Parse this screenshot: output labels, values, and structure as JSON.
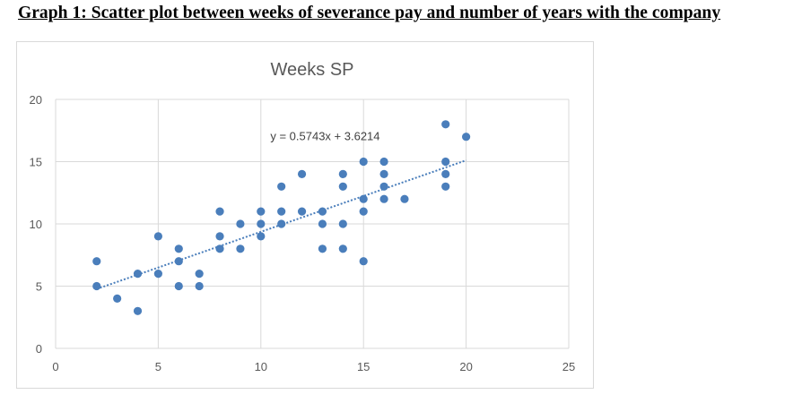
{
  "document": {
    "heading": "Graph 1: Scatter plot between weeks of severance pay and number of years with the company"
  },
  "chart_data": {
    "type": "scatter",
    "title": "Weeks SP",
    "xlabel": "",
    "ylabel": "",
    "xlim": [
      0,
      25
    ],
    "ylim": [
      0,
      20
    ],
    "x_ticks": [
      0,
      5,
      10,
      15,
      20,
      25
    ],
    "y_ticks": [
      0,
      5,
      10,
      15,
      20
    ],
    "grid": true,
    "legend": "none",
    "series": [
      {
        "color": "#4a7ebb",
        "points": [
          [
            2,
            7
          ],
          [
            2,
            5
          ],
          [
            3,
            4
          ],
          [
            4,
            6
          ],
          [
            4,
            3
          ],
          [
            5,
            9
          ],
          [
            5,
            6
          ],
          [
            6,
            8
          ],
          [
            6,
            7
          ],
          [
            6,
            5
          ],
          [
            7,
            6
          ],
          [
            7,
            5
          ],
          [
            8,
            11
          ],
          [
            8,
            9
          ],
          [
            8,
            8
          ],
          [
            9,
            10
          ],
          [
            9,
            8
          ],
          [
            10,
            11
          ],
          [
            10,
            10
          ],
          [
            10,
            9
          ],
          [
            11,
            13
          ],
          [
            11,
            11
          ],
          [
            11,
            10
          ],
          [
            12,
            14
          ],
          [
            12,
            11
          ],
          [
            13,
            11
          ],
          [
            13,
            10
          ],
          [
            13,
            8
          ],
          [
            14,
            14
          ],
          [
            14,
            13
          ],
          [
            14,
            10
          ],
          [
            14,
            8
          ],
          [
            15,
            15
          ],
          [
            15,
            12
          ],
          [
            15,
            11
          ],
          [
            15,
            7
          ],
          [
            16,
            15
          ],
          [
            16,
            14
          ],
          [
            16,
            13
          ],
          [
            16,
            12
          ],
          [
            17,
            12
          ],
          [
            19,
            18
          ],
          [
            19,
            15
          ],
          [
            19,
            14
          ],
          [
            19,
            13
          ],
          [
            20,
            17
          ]
        ]
      }
    ],
    "trendline": {
      "slope": 0.5743,
      "intercept": 3.6214,
      "x_range": [
        2,
        20
      ],
      "label": "y = 0.5743x + 3.6214",
      "label_anchor": [
        13,
        17.1
      ],
      "style": "dotted"
    }
  }
}
